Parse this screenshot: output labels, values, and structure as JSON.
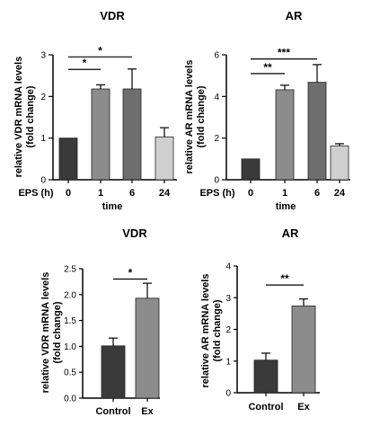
{
  "chart_data": [
    {
      "type": "bar",
      "title": "VDR",
      "ylabel_lines": [
        "relative VDR mRNA levels",
        "(fold change)"
      ],
      "xlabel": "time",
      "x_prefix": "EPS (h)",
      "categories": [
        "0",
        "1",
        "6",
        "24"
      ],
      "values": [
        1.0,
        2.18,
        2.18,
        1.03
      ],
      "errors": [
        0,
        0.1,
        0.48,
        0.22
      ],
      "colors": [
        "#3a3a3a",
        "#8c8c8c",
        "#6e6e6e",
        "#cfcfcf"
      ],
      "ylim": [
        0,
        3
      ],
      "yticks": [
        "0",
        "1",
        "2",
        "3"
      ],
      "significance": [
        {
          "from": 0,
          "to": 1,
          "label": "*",
          "y": 2.65
        },
        {
          "from": 0,
          "to": 2,
          "label": "*",
          "y": 2.95
        }
      ]
    },
    {
      "type": "bar",
      "title": "AR",
      "ylabel_lines": [
        "relative AR mRNA levels",
        "(fold change)"
      ],
      "xlabel": "time",
      "x_prefix": "EPS (h)",
      "categories": [
        "0",
        "1",
        "6",
        "24"
      ],
      "values": [
        1.0,
        4.32,
        4.68,
        1.63
      ],
      "errors": [
        0,
        0.22,
        0.85,
        0.1
      ],
      "colors": [
        "#3a3a3a",
        "#8c8c8c",
        "#6e6e6e",
        "#cfcfcf"
      ],
      "ylim": [
        0,
        6
      ],
      "yticks": [
        "0",
        "2",
        "4",
        "6"
      ],
      "significance": [
        {
          "from": 0,
          "to": 1,
          "label": "**",
          "y": 5.1
        },
        {
          "from": 0,
          "to": 2,
          "label": "***",
          "y": 5.8
        }
      ]
    },
    {
      "type": "bar",
      "title": "VDR",
      "ylabel_lines": [
        "relative VDR mRNA levels",
        "(fold change)"
      ],
      "xlabel": "",
      "x_prefix": "",
      "categories": [
        "Control",
        "Ex"
      ],
      "values": [
        1.01,
        1.93
      ],
      "errors": [
        0.15,
        0.29
      ],
      "colors": [
        "#3a3a3a",
        "#8c8c8c"
      ],
      "ylim": [
        0,
        2.5
      ],
      "yticks": [
        "0.0",
        "0.5",
        "1.0",
        "1.5",
        "2.0",
        "2.5"
      ],
      "significance": [
        {
          "from": 0,
          "to": 1,
          "label": "*",
          "y": 2.3
        }
      ]
    },
    {
      "type": "bar",
      "title": "AR",
      "ylabel_lines": [
        "relative AR mRNA levels",
        "(fold change)"
      ],
      "xlabel": "",
      "x_prefix": "",
      "categories": [
        "Control",
        "Ex"
      ],
      "values": [
        1.03,
        2.74
      ],
      "errors": [
        0.22,
        0.22
      ],
      "colors": [
        "#3a3a3a",
        "#8c8c8c"
      ],
      "ylim": [
        0,
        4
      ],
      "yticks": [
        "0",
        "1",
        "2",
        "3",
        "4"
      ],
      "significance": [
        {
          "from": 0,
          "to": 1,
          "label": "**",
          "y": 3.4
        }
      ]
    }
  ]
}
